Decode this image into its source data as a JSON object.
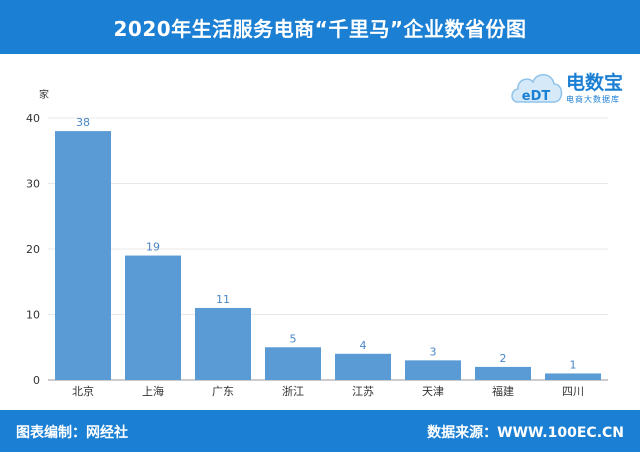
{
  "header": {
    "title": "2020年生活服务电商“千里马”企业数省份图"
  },
  "logo": {
    "brand": "电数宝",
    "slogan": "电商大数据库",
    "mark": "eDT"
  },
  "footer": {
    "editor": "图表编制：网经社",
    "source": "数据来源：WWW.100EC.CN"
  },
  "colors": {
    "header": "#1b7fd4",
    "bar": "#5b9bd5",
    "label": "#4a86c5",
    "axis": "#333333",
    "grid": "#e8e8e8"
  },
  "chart_data": {
    "type": "bar",
    "title": "2020年生活服务电商“千里马”企业数省份图",
    "ylabel": "家",
    "xlabel": "",
    "ylim": [
      0,
      40
    ],
    "yticks": [
      0,
      10,
      20,
      30,
      40
    ],
    "grid": true,
    "categories": [
      "北京",
      "上海",
      "广东",
      "浙江",
      "江苏",
      "天津",
      "福建",
      "四川"
    ],
    "values": [
      38,
      19,
      11,
      5,
      4,
      3,
      2,
      1
    ]
  }
}
